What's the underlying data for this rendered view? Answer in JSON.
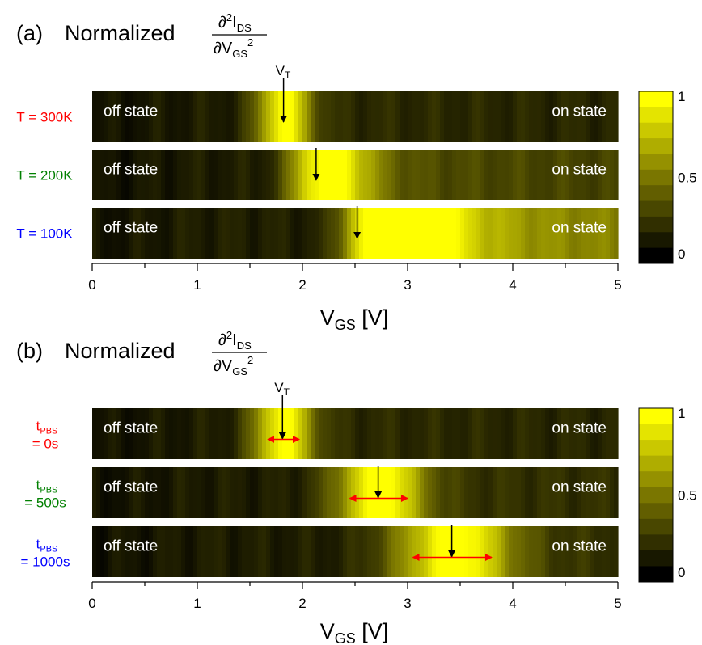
{
  "chart_data": [
    {
      "type": "heatmap",
      "panel_label": "(a)",
      "title_prefix": "Normalized",
      "title_fraction": {
        "num": "∂",
        "num_sup": "2",
        "num_var": "I",
        "num_sub": "DS",
        "den": "∂V",
        "den_sub": "GS",
        "den_sup": "2"
      },
      "xlabel": "V",
      "xlabel_sub": "GS",
      "xlabel_unit": " [V]",
      "xlim": [
        0,
        5
      ],
      "xticks": [
        "0",
        "1",
        "2",
        "3",
        "4",
        "5"
      ],
      "vt_label": "V",
      "vt_sub": "T",
      "colorbar": {
        "min": 0,
        "max": 1,
        "ticks": [
          "0",
          "0.5",
          "1"
        ],
        "levels": 11
      },
      "rows": [
        {
          "label": "T = 300K",
          "color": "#ff0000",
          "off_label": "off state",
          "on_label": "on state",
          "vt": 1.82,
          "peak": 1.82,
          "base": 0.12,
          "tail": 0.06,
          "wl": 0.18,
          "wr": 0.18
        },
        {
          "label": "T = 200K",
          "color": "#008000",
          "off_label": "off state",
          "on_label": "on state",
          "vt": 2.13,
          "peak": 2.15,
          "base": 0.12,
          "tail": 0.22,
          "wl": 0.2,
          "wr": 0.35
        },
        {
          "label": "T = 100K",
          "color": "#0000ff",
          "off_label": "off state",
          "on_label": "on state",
          "vt": 2.52,
          "peak": 2.62,
          "base": 0.13,
          "tail": 0.55,
          "wl": 0.18,
          "wr": 0.6
        }
      ]
    },
    {
      "type": "heatmap",
      "panel_label": "(b)",
      "title_prefix": "Normalized",
      "title_fraction": {
        "num": "∂",
        "num_sup": "2",
        "num_var": "I",
        "num_sub": "DS",
        "den": "∂V",
        "den_sub": "GS",
        "den_sup": "2"
      },
      "xlabel": "V",
      "xlabel_sub": "GS",
      "xlabel_unit": " [V]",
      "xlim": [
        0,
        5
      ],
      "xticks": [
        "0",
        "1",
        "2",
        "3",
        "4",
        "5"
      ],
      "vt_label": "V",
      "vt_sub": "T",
      "colorbar": {
        "min": 0,
        "max": 1,
        "ticks": [
          "0",
          "0.5",
          "1"
        ],
        "levels": 11
      },
      "rows": [
        {
          "label_main": "t",
          "label_sub": "PBS",
          "label_line2": "= 0s",
          "color": "#ff0000",
          "off_label": "off state",
          "on_label": "on state",
          "vt": 1.81,
          "peak": 1.81,
          "base": 0.12,
          "tail": 0.06,
          "wl": 0.2,
          "wr": 0.2,
          "range": [
            1.67,
            1.97
          ]
        },
        {
          "label_main": "t",
          "label_sub": "PBS",
          "label_line2": "= 500s",
          "color": "#008000",
          "off_label": "off state",
          "on_label": "on state",
          "vt": 2.72,
          "peak": 2.72,
          "base": 0.12,
          "tail": 0.1,
          "wl": 0.3,
          "wr": 0.3,
          "range": [
            2.45,
            3.0
          ]
        },
        {
          "label_main": "t",
          "label_sub": "PBS",
          "label_line2": "= 1000s",
          "color": "#0000ff",
          "off_label": "off state",
          "on_label": "on state",
          "vt": 3.42,
          "peak": 3.42,
          "base": 0.12,
          "tail": 0.1,
          "wl": 0.4,
          "wr": 0.4,
          "range": [
            3.05,
            3.8
          ]
        }
      ]
    }
  ]
}
